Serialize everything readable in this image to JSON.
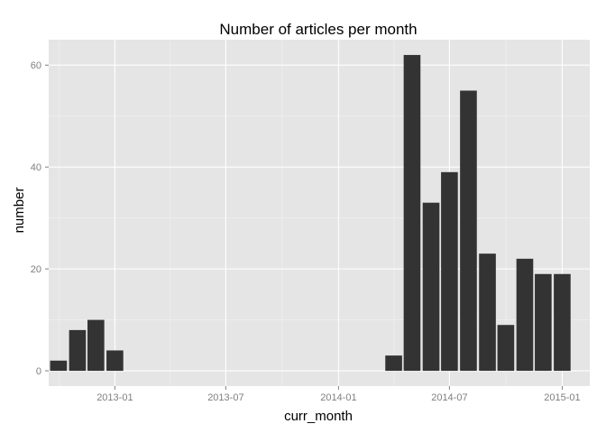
{
  "chart_data": {
    "type": "bar",
    "title": "Number of articles per month",
    "xlabel": "curr_month",
    "ylabel": "number",
    "x_axis": "date",
    "xlim": [
      "2012-09-15",
      "2015-02-15"
    ],
    "ylim": [
      -3,
      65
    ],
    "x_ticks": [
      {
        "date": "2013-01-01",
        "label": "2013-01"
      },
      {
        "date": "2013-07-01",
        "label": "2013-07"
      },
      {
        "date": "2014-01-01",
        "label": "2014-01"
      },
      {
        "date": "2014-07-01",
        "label": "2014-07"
      },
      {
        "date": "2015-01-01",
        "label": "2015-01"
      }
    ],
    "y_ticks": [
      0,
      20,
      40,
      60
    ],
    "grid": true,
    "bar_color": "#333333",
    "panel_background": "#e5e5e5",
    "grid_color": "#ffffff",
    "bars": [
      {
        "month": "2012-10",
        "value": 2
      },
      {
        "month": "2012-11",
        "value": 8
      },
      {
        "month": "2012-12",
        "value": 10
      },
      {
        "month": "2013-01",
        "value": 4
      },
      {
        "month": "2014-04",
        "value": 3
      },
      {
        "month": "2014-05",
        "value": 62
      },
      {
        "month": "2014-06",
        "value": 33
      },
      {
        "month": "2014-07",
        "value": 39
      },
      {
        "month": "2014-08",
        "value": 55
      },
      {
        "month": "2014-09",
        "value": 23
      },
      {
        "month": "2014-10",
        "value": 9
      },
      {
        "month": "2014-11",
        "value": 22
      },
      {
        "month": "2014-12",
        "value": 19
      },
      {
        "month": "2015-01",
        "value": 19
      }
    ]
  }
}
